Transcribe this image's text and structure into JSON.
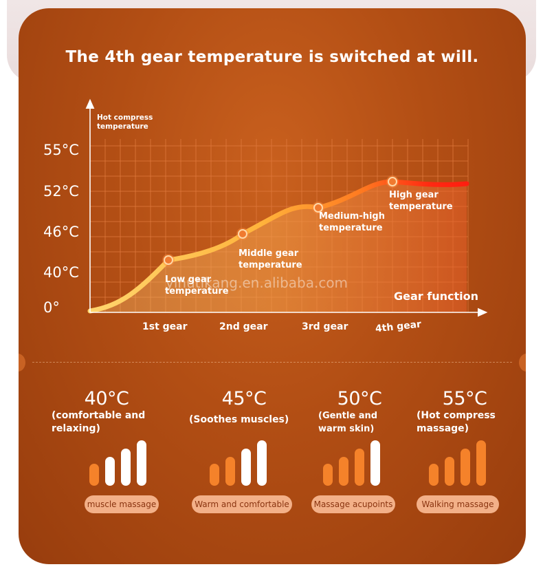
{
  "title": "The 4th gear temperature is switched at will.",
  "watermark": "yinutikang.en.alibaba.com",
  "colors": {
    "background": "#b24e14",
    "accent": "#ffffff",
    "curve": "#ffc04a",
    "curve_high": "#ff2a12",
    "pill_bg": "#f3b088"
  },
  "chart_data": {
    "type": "area",
    "ylabel": "Hot compress temperature",
    "xlabel": "Gear function",
    "y_ticks": [
      "55°C",
      "52°C",
      "46°C",
      "40°C",
      "0°"
    ],
    "categories": [
      "1st gear",
      "2nd gear",
      "3rd gear",
      "4th gear"
    ],
    "grid": true,
    "points": [
      {
        "label": "Low gear temperature",
        "value": 40
      },
      {
        "label": "Middle gear temperature",
        "value": 45
      },
      {
        "label": "Medium-high temperature",
        "value": 50
      },
      {
        "label": "High gear temperature",
        "value": 55
      }
    ]
  },
  "features": [
    {
      "temp": "40°C",
      "desc": "(comfortable and relaxing)",
      "pill": "muscle massage",
      "level": 4
    },
    {
      "temp": "45°C",
      "desc": "(Soothes muscles)",
      "pill": "Warm and comfortable",
      "level": 4
    },
    {
      "temp": "50°C",
      "desc": "(Gentle and warm skin)",
      "pill": "Massage acupoints",
      "level": 4
    },
    {
      "temp": "55°C",
      "desc": "(Hot compress massage)",
      "pill": "Walking massage",
      "level": 4
    }
  ]
}
